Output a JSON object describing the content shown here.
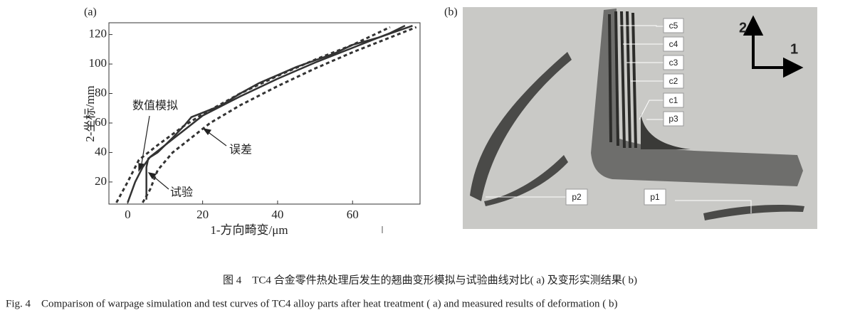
{
  "chart_data": {
    "type": "line",
    "panel_label": "(a)",
    "xlabel": "1-方向畸变/μm",
    "ylabel": "2-坐标/mm",
    "xlim": [
      -5,
      78
    ],
    "ylim": [
      5,
      128
    ],
    "xticks": [
      0,
      20,
      40,
      60
    ],
    "yticks": [
      20,
      40,
      60,
      80,
      100,
      120
    ],
    "series": [
      {
        "color": "#333333",
        "dash": false,
        "x": [
          0,
          2,
          4,
          6,
          10,
          15,
          20,
          30,
          40,
          50,
          60,
          70,
          74
        ],
        "values": [
          6,
          20,
          30,
          37,
          45,
          55,
          65,
          78,
          90,
          101,
          111,
          121,
          126
        ]
      },
      {
        "color": "#333333",
        "dash": false,
        "x": [
          5,
          5,
          5,
          5.5,
          8,
          12,
          15,
          17,
          19,
          25,
          30,
          35,
          45,
          55,
          60,
          67,
          76
        ],
        "values": [
          8,
          20,
          30,
          36,
          40,
          50,
          58,
          64,
          66,
          72,
          80,
          87,
          98,
          107,
          113,
          118,
          126
        ]
      },
      {
        "color": "#333333",
        "dash": true,
        "x": [
          -3,
          0,
          3,
          8,
          15,
          20,
          30,
          40,
          50,
          60,
          70
        ],
        "values": [
          6,
          20,
          35,
          45,
          58,
          66,
          80,
          92,
          103,
          113,
          125
        ]
      },
      {
        "color": "#333333",
        "dash": true,
        "x": [
          4,
          6,
          8,
          12,
          17,
          22,
          30,
          40,
          50,
          60,
          70,
          77
        ],
        "values": [
          6,
          15,
          28,
          40,
          50,
          60,
          72,
          85,
          97,
          108,
          118,
          125
        ]
      }
    ],
    "annotations": [
      "数值模拟",
      "误差",
      "试验"
    ]
  },
  "photo": {
    "panel_label": "(b)",
    "labels": [
      "c5",
      "c4",
      "c3",
      "c2",
      "c1",
      "p3",
      "p2",
      "p1"
    ],
    "axis_labels": [
      "2",
      "1"
    ]
  },
  "caption": {
    "zh": "图 4　TC4 合金零件热处理后发生的翘曲变形模拟与试验曲线对比( a) 及变形实测结果( b)",
    "en": "Fig. 4　Comparison of warpage simulation and test curves of TC4 alloy parts after heat treatment ( a)  and measured results of deformation ( b)"
  }
}
